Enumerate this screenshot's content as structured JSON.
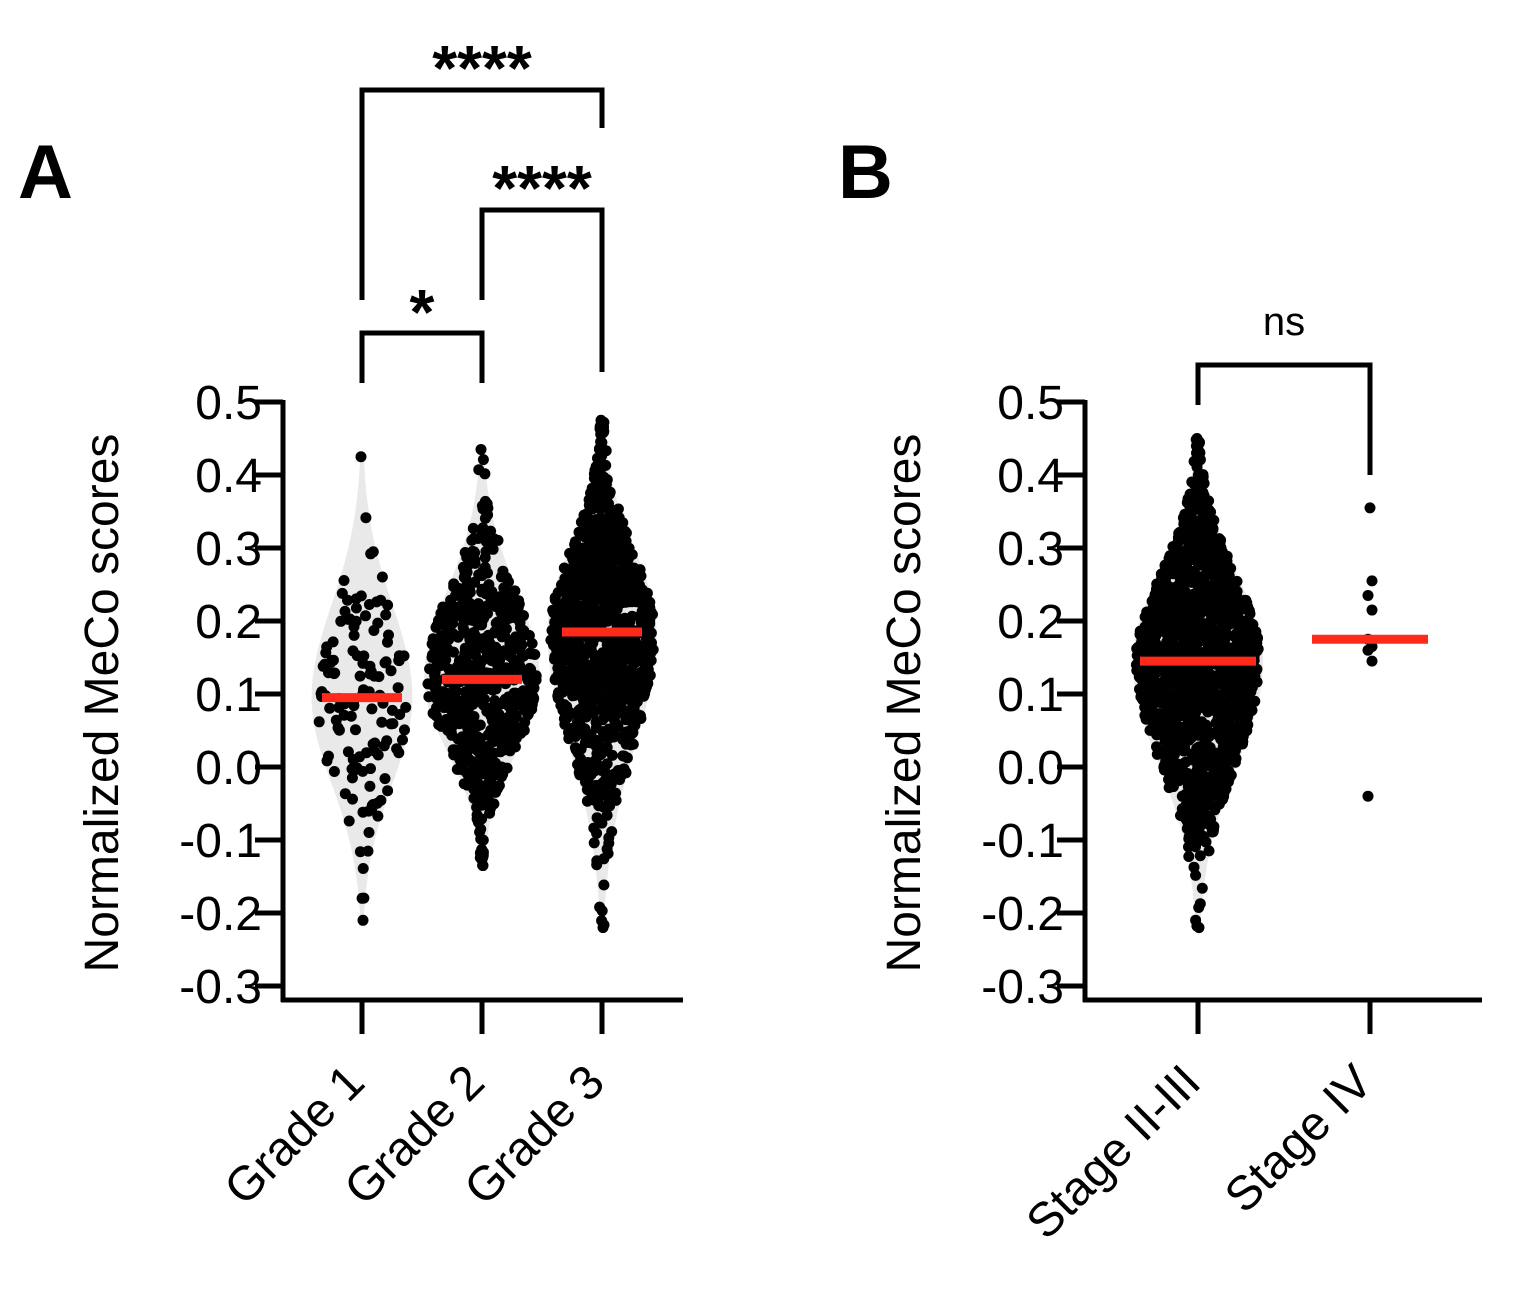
{
  "figure": {
    "panels": [
      "A",
      "B"
    ]
  },
  "chart_data": [
    {
      "panel_label": "A",
      "type": "scatter",
      "subtype": "violin-beeswarm",
      "ylabel": "Normalized MeCo scores",
      "xlabel": "",
      "ylim": [
        -0.3,
        0.5
      ],
      "yticks": [
        -0.3,
        -0.2,
        -0.1,
        0.0,
        0.1,
        0.2,
        0.3,
        0.4,
        0.5
      ],
      "ytick_labels": [
        "-0.3",
        "-0.2",
        "-0.1",
        "0.0",
        "0.1",
        "0.2",
        "0.3",
        "0.4",
        "0.5"
      ],
      "categories": [
        "Grade 1",
        "Grade 2",
        "Grade 3"
      ],
      "medians": [
        0.095,
        0.12,
        0.185
      ],
      "ranges": [
        [
          -0.21,
          0.425
        ],
        [
          -0.135,
          0.435
        ],
        [
          -0.22,
          0.475
        ]
      ],
      "point_counts": [
        130,
        700,
        1000
      ],
      "point_color": "#000000",
      "median_color": "#ff2a1a",
      "violin_color": "#e3e3e3",
      "comparisons": [
        {
          "from": "Grade 1",
          "to": "Grade 2",
          "label": "*"
        },
        {
          "from": "Grade 2",
          "to": "Grade 3",
          "label": "****"
        },
        {
          "from": "Grade 1",
          "to": "Grade 3",
          "label": "****"
        }
      ]
    },
    {
      "panel_label": "B",
      "type": "scatter",
      "subtype": "violin-beeswarm",
      "ylabel": "Normalized MeCo scores",
      "xlabel": "",
      "ylim": [
        -0.3,
        0.5
      ],
      "yticks": [
        -0.3,
        -0.2,
        -0.1,
        0.0,
        0.1,
        0.2,
        0.3,
        0.4,
        0.5
      ],
      "ytick_labels": [
        "-0.3",
        "-0.2",
        "-0.1",
        "0.0",
        "0.1",
        "0.2",
        "0.3",
        "0.4",
        "0.5"
      ],
      "categories": [
        "Stage II-III",
        "Stage IV"
      ],
      "medians": [
        0.145,
        0.175
      ],
      "ranges": [
        [
          -0.22,
          0.45
        ],
        [
          -0.04,
          0.355
        ]
      ],
      "point_counts": [
        1400,
        9
      ],
      "explicit_points": [
        null,
        [
          0.355,
          0.255,
          0.235,
          0.215,
          0.175,
          0.165,
          0.16,
          0.145,
          -0.04
        ]
      ],
      "point_color": "#000000",
      "median_color": "#ff2a1a",
      "violin_color": "#e3e3e3",
      "comparisons": [
        {
          "from": "Stage II-III",
          "to": "Stage IV",
          "label": "ns"
        }
      ]
    }
  ]
}
